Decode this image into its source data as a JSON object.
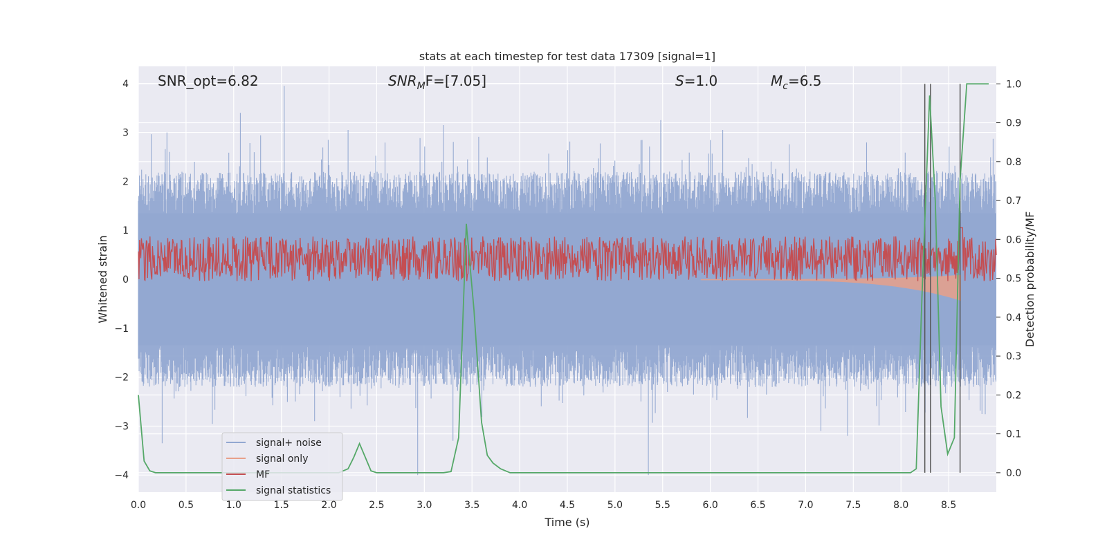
{
  "chart_data": {
    "type": "line",
    "title": "stats at each timestep for test data 17309 [signal=1]",
    "xlabel": "Time (s)",
    "ylabel": "Whitened strain",
    "y2label": "Detection probability/MF",
    "xlim": [
      0.0,
      9.0
    ],
    "ylim": [
      -4.35,
      4.35
    ],
    "y2lim": [
      -0.05,
      1.045
    ],
    "grid": true,
    "x_ticks": [
      0.0,
      0.5,
      1.0,
      1.5,
      2.0,
      2.5,
      3.0,
      3.5,
      4.0,
      4.5,
      5.0,
      5.5,
      6.0,
      6.5,
      7.0,
      7.5,
      8.0,
      8.5
    ],
    "x_tick_labels": [
      "0.0",
      "0.5",
      "1.0",
      "1.5",
      "2.0",
      "2.5",
      "3.0",
      "3.5",
      "4.0",
      "4.5",
      "5.0",
      "5.5",
      "6.0",
      "6.5",
      "7.0",
      "7.5",
      "8.0",
      "8.5"
    ],
    "y_ticks": [
      4,
      3,
      2,
      1,
      0,
      -1,
      -2,
      -3,
      -4
    ],
    "y_tick_labels": [
      "4",
      "3",
      "2",
      "1",
      "0",
      "−1",
      "−2",
      "−3",
      "−4"
    ],
    "y2_ticks": [
      1.0,
      0.9,
      0.8,
      0.7,
      0.6,
      0.5,
      0.4,
      0.3,
      0.2,
      0.1,
      0.0
    ],
    "y2_tick_labels": [
      "1.0",
      "0.9",
      "0.8",
      "0.7",
      "0.6",
      "0.5",
      "0.4",
      "0.3",
      "0.2",
      "0.1",
      "0.0"
    ],
    "annotations": {
      "snr_opt": "SNR_opt=6.82",
      "snr_mf_prefix": "SNR",
      "snr_mf_sub": "M",
      "snr_mf_suffix": "F=[7.05]",
      "s_prefix": "S",
      "s_value": "=1.0",
      "mc_prefix": "M",
      "mc_sub": "c",
      "mc_value": "=6.5"
    },
    "series": [
      {
        "name": "signal+ noise",
        "color": "#92a8d1",
        "description_values": "noise band approx -1.6..1.6 with spikes",
        "spikes": [
          [
            0.25,
            -3.35
          ],
          [
            1.07,
            3.4
          ],
          [
            1.53,
            3.95
          ],
          [
            2.93,
            -4.0
          ],
          [
            3.2,
            3.15
          ],
          [
            3.3,
            -3.3
          ],
          [
            5.35,
            -4.0
          ],
          [
            5.48,
            3.25
          ],
          [
            7.16,
            -3.1
          ],
          [
            7.44,
            -3.2
          ],
          [
            6.13,
            3.05
          ],
          [
            0.3,
            3.0
          ],
          [
            2.2,
            3.05
          ]
        ]
      },
      {
        "name": "signal only",
        "color": "#e8a08a",
        "chirp": {
          "start": 5.9,
          "end": 8.63,
          "peak_amplitude": 0.42
        }
      },
      {
        "name": "MF",
        "color": "#c44e52",
        "level_mean": 0.55,
        "level_range": [
          0.5,
          0.615
        ],
        "peak": [
          8.63,
          0.63
        ]
      },
      {
        "name": "signal statistics",
        "color": "#55a868",
        "x": [
          0.0,
          0.06,
          0.12,
          0.18,
          0.3,
          1.5,
          2.1,
          2.2,
          2.26,
          2.32,
          2.38,
          2.44,
          2.5,
          3.2,
          3.28,
          3.36,
          3.44,
          3.52,
          3.6,
          3.66,
          3.72,
          3.8,
          3.9,
          4.5,
          8.1,
          8.16,
          8.22,
          8.3,
          8.36,
          8.42,
          8.49,
          8.56,
          8.62,
          8.69,
          8.76,
          8.92
        ],
        "y": [
          0.2,
          0.03,
          0.005,
          0.0,
          0.0,
          0.0,
          0.0,
          0.01,
          0.04,
          0.075,
          0.04,
          0.005,
          0.0,
          0.0,
          0.003,
          0.09,
          0.64,
          0.42,
          0.13,
          0.045,
          0.025,
          0.01,
          0.0,
          0.0,
          0.0,
          0.01,
          0.45,
          0.97,
          0.7,
          0.17,
          0.048,
          0.09,
          0.75,
          1.0,
          1.0,
          1.0
        ]
      }
    ],
    "vlines": [
      8.25,
      8.31,
      8.62
    ],
    "vline_range": [
      0.0,
      1.0
    ],
    "legend": {
      "position": "lower-left",
      "entries": [
        "signal+ noise",
        "signal only",
        "MF",
        "signal statistics"
      ]
    }
  }
}
